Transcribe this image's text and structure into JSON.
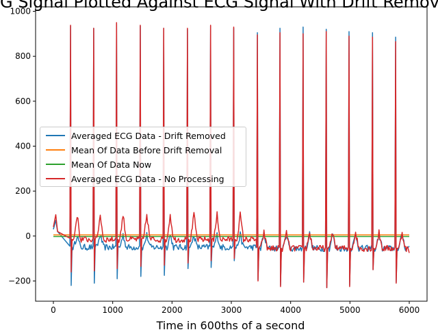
{
  "chart_data": {
    "type": "line",
    "title": "ECG Signal Plotted Against ECG Signal With Drift Removed",
    "xlabel": "Time in 600ths of a second",
    "ylabel": "",
    "xlim": [
      -300,
      6300
    ],
    "ylim": [
      -290,
      1020
    ],
    "x_ticks": [
      0,
      1000,
      2000,
      3000,
      4000,
      5000,
      6000
    ],
    "y_ticks": [
      -200,
      0,
      200,
      400,
      600,
      800,
      1000
    ],
    "grid": false,
    "legend_position": "center-left",
    "series": [
      {
        "name": "Averaged ECG Data - Drift Removed",
        "color": "#1f77b4",
        "peaks": [
          {
            "x": 290,
            "y": 935
          },
          {
            "x": 680,
            "y": 925
          },
          {
            "x": 1065,
            "y": 945
          },
          {
            "x": 1465,
            "y": 935
          },
          {
            "x": 1860,
            "y": 925
          },
          {
            "x": 2260,
            "y": 920
          },
          {
            "x": 2650,
            "y": 935
          },
          {
            "x": 3040,
            "y": 925
          },
          {
            "x": 3440,
            "y": 905
          },
          {
            "x": 3820,
            "y": 925
          },
          {
            "x": 4210,
            "y": 930
          },
          {
            "x": 4600,
            "y": 920
          },
          {
            "x": 4985,
            "y": 910
          },
          {
            "x": 5380,
            "y": 905
          },
          {
            "x": 5770,
            "y": 885
          }
        ],
        "troughs": [
          {
            "x": 300,
            "y": -220
          },
          {
            "x": 690,
            "y": -210
          },
          {
            "x": 1075,
            "y": -190
          },
          {
            "x": 1475,
            "y": -180
          },
          {
            "x": 1870,
            "y": -175
          },
          {
            "x": 2270,
            "y": -145
          },
          {
            "x": 2660,
            "y": -140
          },
          {
            "x": 3050,
            "y": -110
          },
          {
            "x": 3450,
            "y": -195
          },
          {
            "x": 3830,
            "y": -220
          },
          {
            "x": 4220,
            "y": -205
          },
          {
            "x": 4610,
            "y": -230
          },
          {
            "x": 4995,
            "y": -220
          },
          {
            "x": 5390,
            "y": -150
          },
          {
            "x": 5780,
            "y": -205
          }
        ]
      },
      {
        "name": "Mean Of Data Before Drift Removal",
        "color": "#ff7f0e",
        "constant": 5
      },
      {
        "name": "Mean Of Data Now",
        "color": "#2ca02c",
        "constant": -2
      },
      {
        "name": "Averaged ECG Data - No Processing",
        "color": "#d62728",
        "peaks": [
          {
            "x": 290,
            "y": 938
          },
          {
            "x": 680,
            "y": 925
          },
          {
            "x": 1065,
            "y": 950
          },
          {
            "x": 1465,
            "y": 938
          },
          {
            "x": 1860,
            "y": 925
          },
          {
            "x": 2260,
            "y": 925
          },
          {
            "x": 2650,
            "y": 938
          },
          {
            "x": 3040,
            "y": 930
          },
          {
            "x": 3440,
            "y": 895
          },
          {
            "x": 3820,
            "y": 905
          },
          {
            "x": 4210,
            "y": 900
          },
          {
            "x": 4600,
            "y": 910
          },
          {
            "x": 4985,
            "y": 890
          },
          {
            "x": 5380,
            "y": 885
          },
          {
            "x": 5770,
            "y": 865
          }
        ],
        "troughs": [
          {
            "x": 300,
            "y": -160
          },
          {
            "x": 690,
            "y": -155
          },
          {
            "x": 1075,
            "y": -145
          },
          {
            "x": 1475,
            "y": -135
          },
          {
            "x": 1870,
            "y": -130
          },
          {
            "x": 2270,
            "y": -120
          },
          {
            "x": 2660,
            "y": -110
          },
          {
            "x": 3050,
            "y": -100
          },
          {
            "x": 3450,
            "y": -200
          },
          {
            "x": 3830,
            "y": -225
          },
          {
            "x": 4220,
            "y": -205
          },
          {
            "x": 4610,
            "y": -230
          },
          {
            "x": 4995,
            "y": -225
          },
          {
            "x": 5390,
            "y": -150
          },
          {
            "x": 5780,
            "y": -210
          }
        ]
      }
    ]
  }
}
